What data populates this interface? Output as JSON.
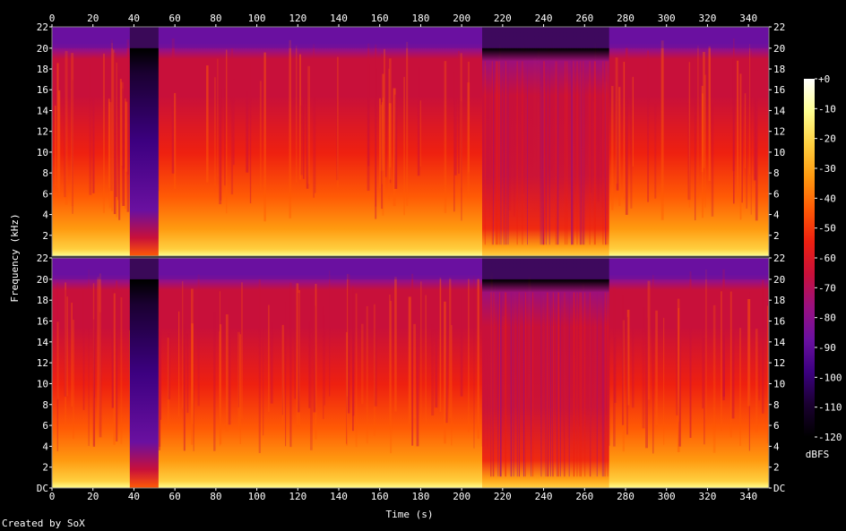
{
  "chart_data": {
    "type": "heatmap",
    "xlabel": "Time (s)",
    "ylabel": "Frequency (kHz)",
    "x_ticks": [
      "0",
      "20",
      "40",
      "60",
      "80",
      "100",
      "120",
      "140",
      "160",
      "180",
      "200",
      "220",
      "240",
      "260",
      "280",
      "300",
      "320",
      "340"
    ],
    "xlim": [
      0,
      350
    ],
    "y_ticks_left": [
      "DC",
      "2",
      "4",
      "6",
      "8",
      "10",
      "12",
      "14",
      "16",
      "18",
      "20",
      "22"
    ],
    "y_ticks_right": [
      "DC",
      "2",
      "4",
      "6",
      "8",
      "10",
      "12",
      "14",
      "16",
      "18",
      "20",
      "22"
    ],
    "ylim_khz": [
      0,
      22.05
    ],
    "channels": 2,
    "colorbar": {
      "label": "dBFS",
      "range": [
        -120,
        0
      ],
      "ticks": [
        "+0",
        "-10",
        "-20",
        "-30",
        "-40",
        "-50",
        "-60",
        "-70",
        "-80",
        "-90",
        "-100",
        "-110",
        "-120"
      ]
    },
    "quiet_segments_s": [
      [
        38,
        52
      ]
    ],
    "reduced_high_freq_segments_s": [
      [
        210,
        272
      ]
    ],
    "cutoff_khz": 20
  },
  "colors": {
    "palette": [
      "#000000",
      "#1a0030",
      "#3c0080",
      "#6a10a0",
      "#9a1080",
      "#c8103a",
      "#ee2010",
      "#ff5a05",
      "#ff9a10",
      "#ffd040",
      "#ffff90",
      "#ffffff"
    ]
  },
  "footer": {
    "credit": "Created by SoX"
  }
}
